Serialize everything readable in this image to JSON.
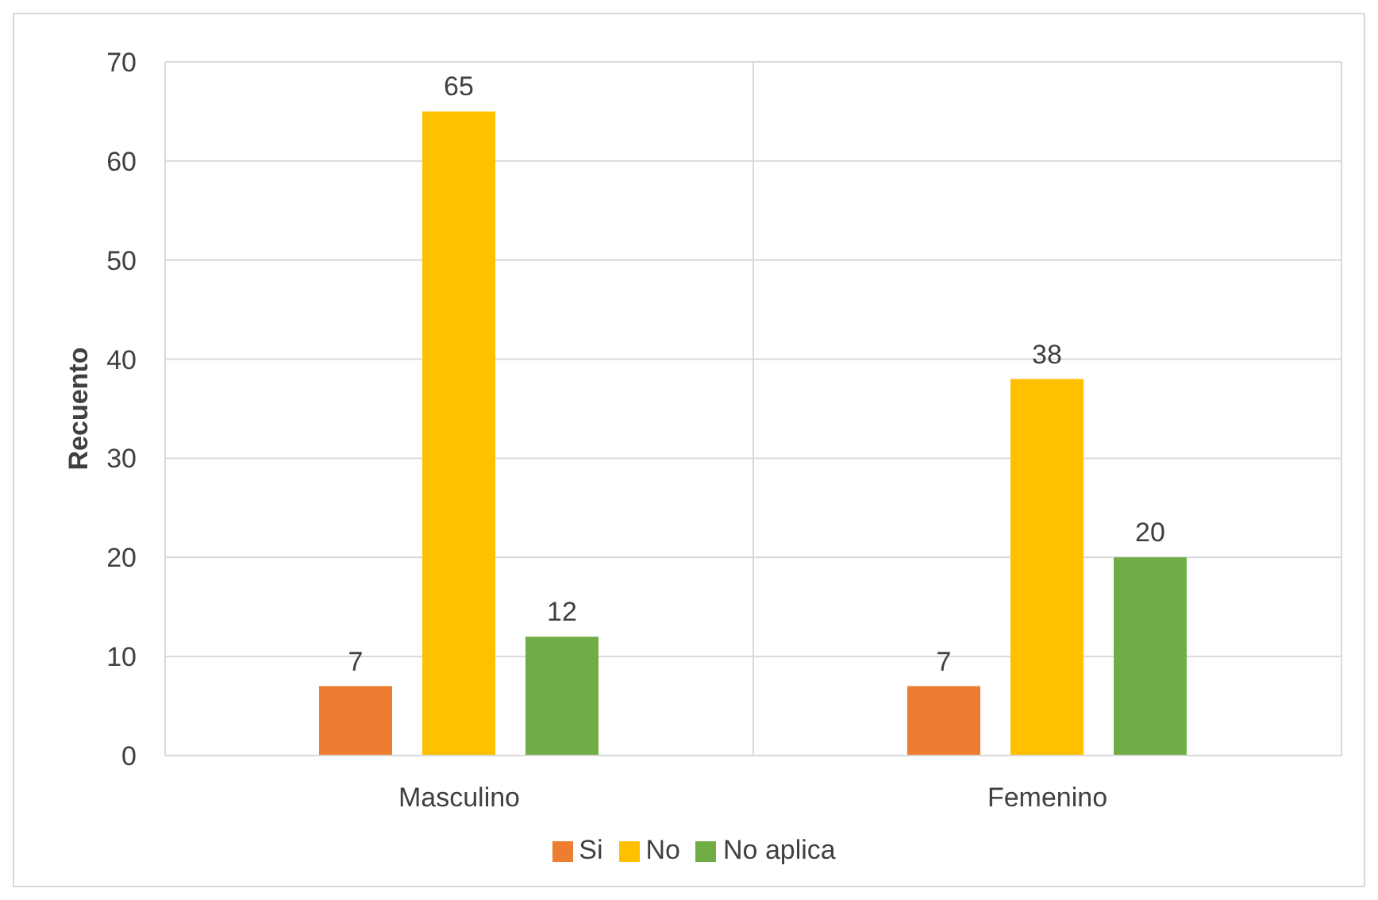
{
  "chart_data": {
    "type": "bar",
    "ylabel": "Recuento",
    "categories": [
      "Masculino",
      "Femenino"
    ],
    "series": [
      {
        "name": "Si",
        "color": "#ed7d31",
        "values": [
          7,
          7
        ]
      },
      {
        "name": "No",
        "color": "#ffc000",
        "values": [
          65,
          38
        ]
      },
      {
        "name": "No aplica",
        "color": "#70ad47",
        "values": [
          12,
          20
        ]
      }
    ],
    "ylim": [
      0,
      70
    ],
    "yticks": [
      0,
      10,
      20,
      30,
      40,
      50,
      60,
      70
    ],
    "grid": true,
    "legend": "bottom",
    "data_labels": true
  }
}
